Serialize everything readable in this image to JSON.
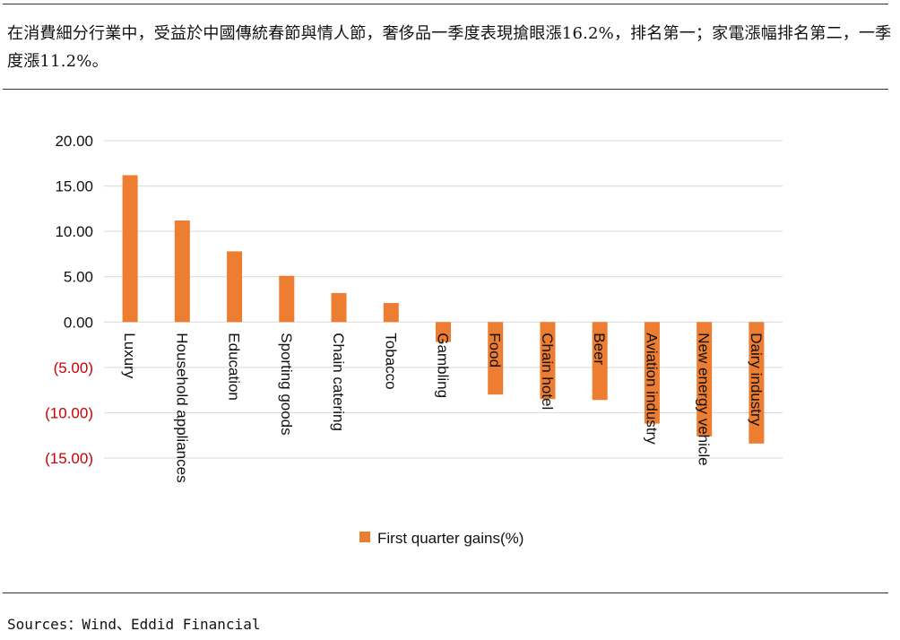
{
  "intro_text": "在消費細分行業中，受益於中國傳統春節與情人節，奢侈品一季度表現搶眼漲16.2%，排名第一；家電漲幅排名第二，一季度漲11.2%。",
  "source_text": "Sources：Wind、Eddid Financial",
  "colors": {
    "bar": "#ED7D31",
    "negative_tick": "#CC0000",
    "grid": "#D9D9D9",
    "positive_tick": "#111111"
  },
  "chart_data": {
    "type": "bar",
    "categories": [
      "Luxury",
      "Household appliances",
      "Education",
      "Sporting goods",
      "Chain catering",
      "Tobacco",
      "Gambling",
      "Food",
      "Chain hotel",
      "Beer",
      "Aviation industry",
      "New energy vehicle",
      "Dairy industry"
    ],
    "series": [
      {
        "name": "First quarter gains(%)",
        "values": [
          16.2,
          11.2,
          7.8,
          5.1,
          3.2,
          2.1,
          -2.2,
          -8.0,
          -8.5,
          -8.6,
          -11.2,
          -12.6,
          -13.4
        ]
      }
    ],
    "ylim": [
      -15,
      20
    ],
    "yticks": [
      20,
      15,
      10,
      5,
      0,
      -5,
      -10,
      -15
    ],
    "ytick_labels": [
      "20.00",
      "15.00",
      "10.00",
      "5.00",
      "0.00",
      "(5.00)",
      "(10.00)",
      "(15.00)"
    ],
    "grid": true,
    "legend_position": "bottom",
    "xlabel": "",
    "ylabel": ""
  }
}
